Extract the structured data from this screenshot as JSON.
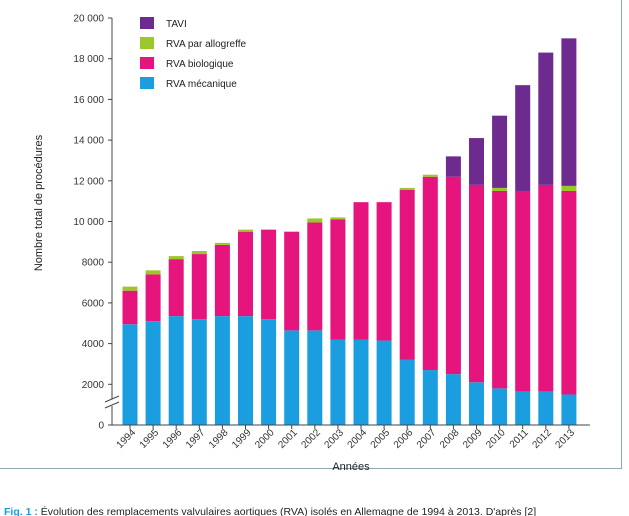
{
  "chart_data": {
    "type": "bar",
    "stacked": true,
    "categories": [
      "1994",
      "1995",
      "1996",
      "1997",
      "1998",
      "1999",
      "2000",
      "2001",
      "2002",
      "2003",
      "2004",
      "2005",
      "2006",
      "2007",
      "2008",
      "2009",
      "2010",
      "2011",
      "2012",
      "2013"
    ],
    "series": [
      {
        "name": "RVA mécanique",
        "color": "#1a9ee0",
        "values": [
          4950,
          5100,
          5350,
          5200,
          5350,
          5350,
          5200,
          4650,
          4650,
          4200,
          4200,
          4150,
          3200,
          2700,
          2500,
          2100,
          1800,
          1650,
          1650,
          1500
        ]
      },
      {
        "name": "RVA biologique",
        "color": "#e6147d",
        "values": [
          1650,
          2300,
          2800,
          3200,
          3500,
          4150,
          4400,
          4850,
          5300,
          5900,
          6750,
          6800,
          8350,
          9500,
          9700,
          9700,
          9700,
          9850,
          10150,
          10000
        ]
      },
      {
        "name": "RVA par allogreffe",
        "color": "#9cc72b",
        "values": [
          200,
          200,
          150,
          150,
          100,
          100,
          0,
          0,
          200,
          100,
          0,
          0,
          100,
          100,
          0,
          0,
          150,
          0,
          0,
          250
        ]
      },
      {
        "name": "TAVI",
        "color": "#6d2a8f",
        "values": [
          0,
          0,
          0,
          0,
          0,
          0,
          0,
          0,
          0,
          0,
          0,
          0,
          0,
          0,
          1000,
          2300,
          3550,
          5200,
          6500,
          7250
        ]
      }
    ],
    "legend_order": [
      "TAVI",
      "RVA par allogreffe",
      "RVA biologique",
      "RVA mécanique"
    ],
    "legend_position": "top-left",
    "y_ticks": [
      "0",
      "2000",
      "4000",
      "6000",
      "8000",
      "10 000",
      "12 000",
      "14 000",
      "16 000",
      "18 000",
      "20 000"
    ],
    "ylim": [
      0,
      20000
    ],
    "ylabel": "Nombre total de procédures",
    "xlabel": "Années",
    "axis_break": true,
    "grid": false
  },
  "caption": {
    "label": "Fig. 1 :",
    "text": " Évolution des remplacements valvulaires aortiques (RVA) isolés en Allemagne de 1994 à 2013. D'après [2]"
  }
}
